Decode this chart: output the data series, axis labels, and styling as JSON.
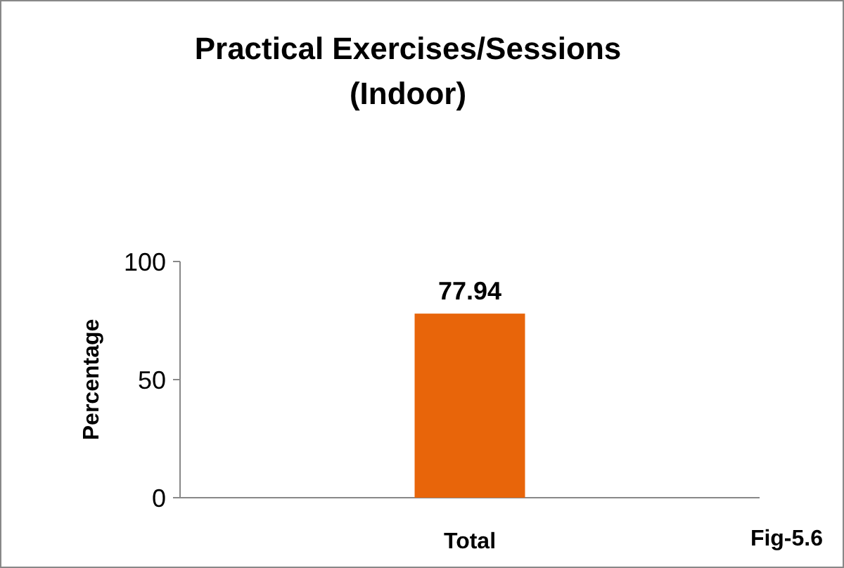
{
  "chart_data": {
    "type": "bar",
    "title": "Practical Exercises/Sessions\n(Indoor)",
    "ylabel": "Percentage",
    "categories": [
      "Total"
    ],
    "values": [
      77.94
    ],
    "color": "#e8650a",
    "ylim": [
      0,
      100
    ],
    "yticks": [
      0,
      50,
      100
    ],
    "data_labels": true,
    "annotations": [
      "Fig-5.6"
    ]
  }
}
